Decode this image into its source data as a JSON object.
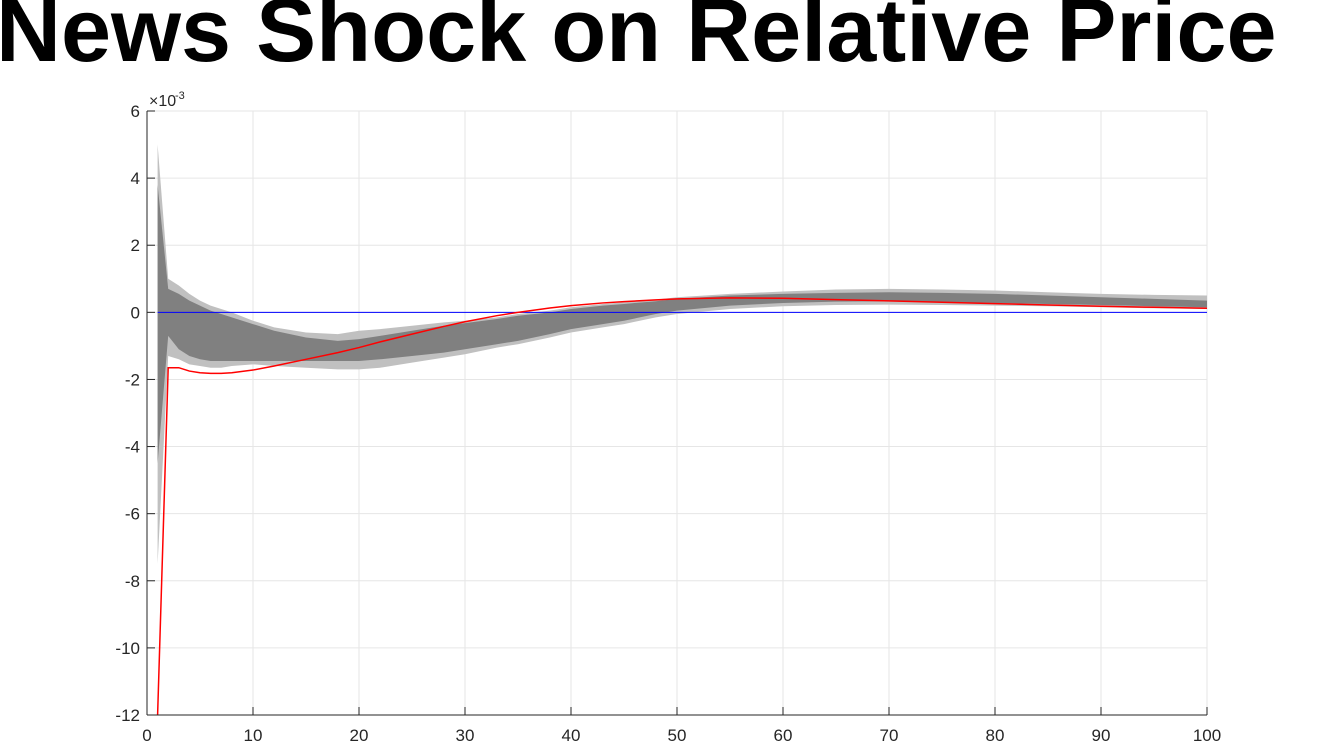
{
  "chart_data": {
    "type": "line",
    "title": "News Shock on Relative Price",
    "xlabel": "",
    "ylabel": "",
    "xlim": [
      0,
      100
    ],
    "ylim": [
      -12,
      6
    ],
    "y_scale_exponent": {
      "prefix": "×10",
      "power": "-3"
    },
    "x_ticks": [
      "0",
      "10",
      "20",
      "30",
      "40",
      "50",
      "60",
      "70",
      "80",
      "90",
      "100"
    ],
    "y_ticks": [
      "-12",
      "-10",
      "-8",
      "-6",
      "-4",
      "-2",
      "0",
      "2",
      "4",
      "6"
    ],
    "grid": true,
    "legend": "none",
    "colors": {
      "outer_band": "#c0c0c0",
      "inner_band": "#808080",
      "zero_line": "#0000ff",
      "median_line": "#ff0000",
      "grid": "#e6e6e6",
      "axis": "#262626"
    },
    "outer_band": {
      "x": [
        1,
        2,
        3,
        4,
        5,
        6,
        7,
        8,
        10,
        12,
        15,
        18,
        20,
        22,
        25,
        28,
        30,
        33,
        35,
        38,
        40,
        43,
        45,
        48,
        50,
        55,
        60,
        65,
        70,
        75,
        80,
        85,
        90,
        95,
        100
      ],
      "upper": [
        5.0,
        1.0,
        0.8,
        0.55,
        0.35,
        0.2,
        0.1,
        0.0,
        -0.25,
        -0.45,
        -0.6,
        -0.65,
        -0.55,
        -0.5,
        -0.4,
        -0.3,
        -0.25,
        -0.15,
        -0.05,
        0.05,
        0.15,
        0.25,
        0.3,
        0.38,
        0.45,
        0.55,
        0.62,
        0.68,
        0.7,
        0.68,
        0.65,
        0.6,
        0.55,
        0.52,
        0.5
      ],
      "lower": [
        -7.5,
        -1.3,
        -1.4,
        -1.55,
        -1.6,
        -1.65,
        -1.65,
        -1.6,
        -1.55,
        -1.6,
        -1.65,
        -1.7,
        -1.7,
        -1.65,
        -1.5,
        -1.35,
        -1.25,
        -1.05,
        -0.95,
        -0.75,
        -0.6,
        -0.45,
        -0.35,
        -0.15,
        -0.05,
        0.1,
        0.18,
        0.22,
        0.23,
        0.22,
        0.2,
        0.18,
        0.15,
        0.12,
        0.1
      ]
    },
    "inner_band": {
      "x": [
        1,
        2,
        3,
        4,
        5,
        6,
        7,
        8,
        10,
        12,
        15,
        18,
        20,
        22,
        25,
        28,
        30,
        33,
        35,
        38,
        40,
        43,
        45,
        48,
        50,
        55,
        60,
        65,
        70,
        75,
        80,
        85,
        90,
        95,
        100
      ],
      "upper": [
        3.8,
        0.7,
        0.55,
        0.35,
        0.2,
        0.05,
        -0.05,
        -0.15,
        -0.35,
        -0.55,
        -0.75,
        -0.85,
        -0.8,
        -0.7,
        -0.55,
        -0.4,
        -0.32,
        -0.2,
        -0.1,
        0.0,
        0.1,
        0.2,
        0.25,
        0.33,
        0.4,
        0.5,
        0.55,
        0.58,
        0.6,
        0.58,
        0.55,
        0.5,
        0.45,
        0.4,
        0.35
      ],
      "lower": [
        -4.5,
        -0.7,
        -1.1,
        -1.3,
        -1.4,
        -1.45,
        -1.45,
        -1.45,
        -1.45,
        -1.45,
        -1.45,
        -1.45,
        -1.45,
        -1.4,
        -1.3,
        -1.2,
        -1.1,
        -0.95,
        -0.85,
        -0.65,
        -0.5,
        -0.35,
        -0.25,
        -0.05,
        0.05,
        0.2,
        0.28,
        0.32,
        0.33,
        0.3,
        0.28,
        0.25,
        0.22,
        0.18,
        0.15
      ]
    },
    "zero_line": {
      "x": [
        1,
        100
      ],
      "y": [
        0,
        0
      ]
    },
    "median_line": {
      "x": [
        1,
        2,
        3,
        4,
        5,
        6,
        7,
        8,
        10,
        12,
        15,
        18,
        20,
        22,
        25,
        28,
        30,
        33,
        35,
        38,
        40,
        43,
        45,
        48,
        50,
        55,
        60,
        65,
        70,
        75,
        80,
        85,
        90,
        95,
        100
      ],
      "y": [
        -12.0,
        -1.65,
        -1.65,
        -1.75,
        -1.8,
        -1.82,
        -1.82,
        -1.8,
        -1.72,
        -1.6,
        -1.4,
        -1.2,
        -1.05,
        -0.88,
        -0.65,
        -0.42,
        -0.28,
        -0.1,
        0.0,
        0.13,
        0.2,
        0.28,
        0.32,
        0.37,
        0.4,
        0.43,
        0.42,
        0.38,
        0.34,
        0.3,
        0.26,
        0.22,
        0.18,
        0.15,
        0.12
      ]
    }
  }
}
